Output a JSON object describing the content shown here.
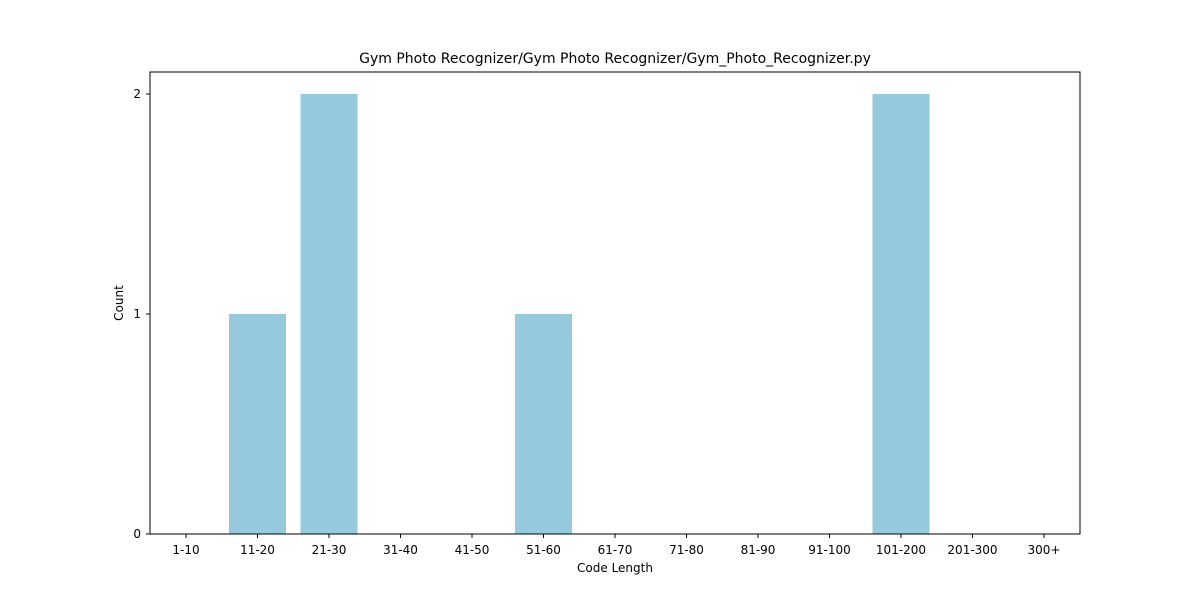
{
  "chart_data": {
    "type": "bar",
    "title": "Gym Photo Recognizer/Gym Photo Recognizer/Gym_Photo_Recognizer.py",
    "xlabel": "Code Length",
    "ylabel": "Count",
    "categories": [
      "1-10",
      "11-20",
      "21-30",
      "31-40",
      "41-50",
      "51-60",
      "61-70",
      "71-80",
      "81-90",
      "91-100",
      "101-200",
      "201-300",
      "300+"
    ],
    "values": [
      0,
      1,
      2,
      0,
      0,
      1,
      0,
      0,
      0,
      0,
      2,
      0,
      0
    ],
    "ylim": [
      0,
      2.1
    ],
    "yticks": [
      0,
      1,
      2
    ],
    "bar_color": "#96c9de",
    "grid": false,
    "legend": "none"
  }
}
